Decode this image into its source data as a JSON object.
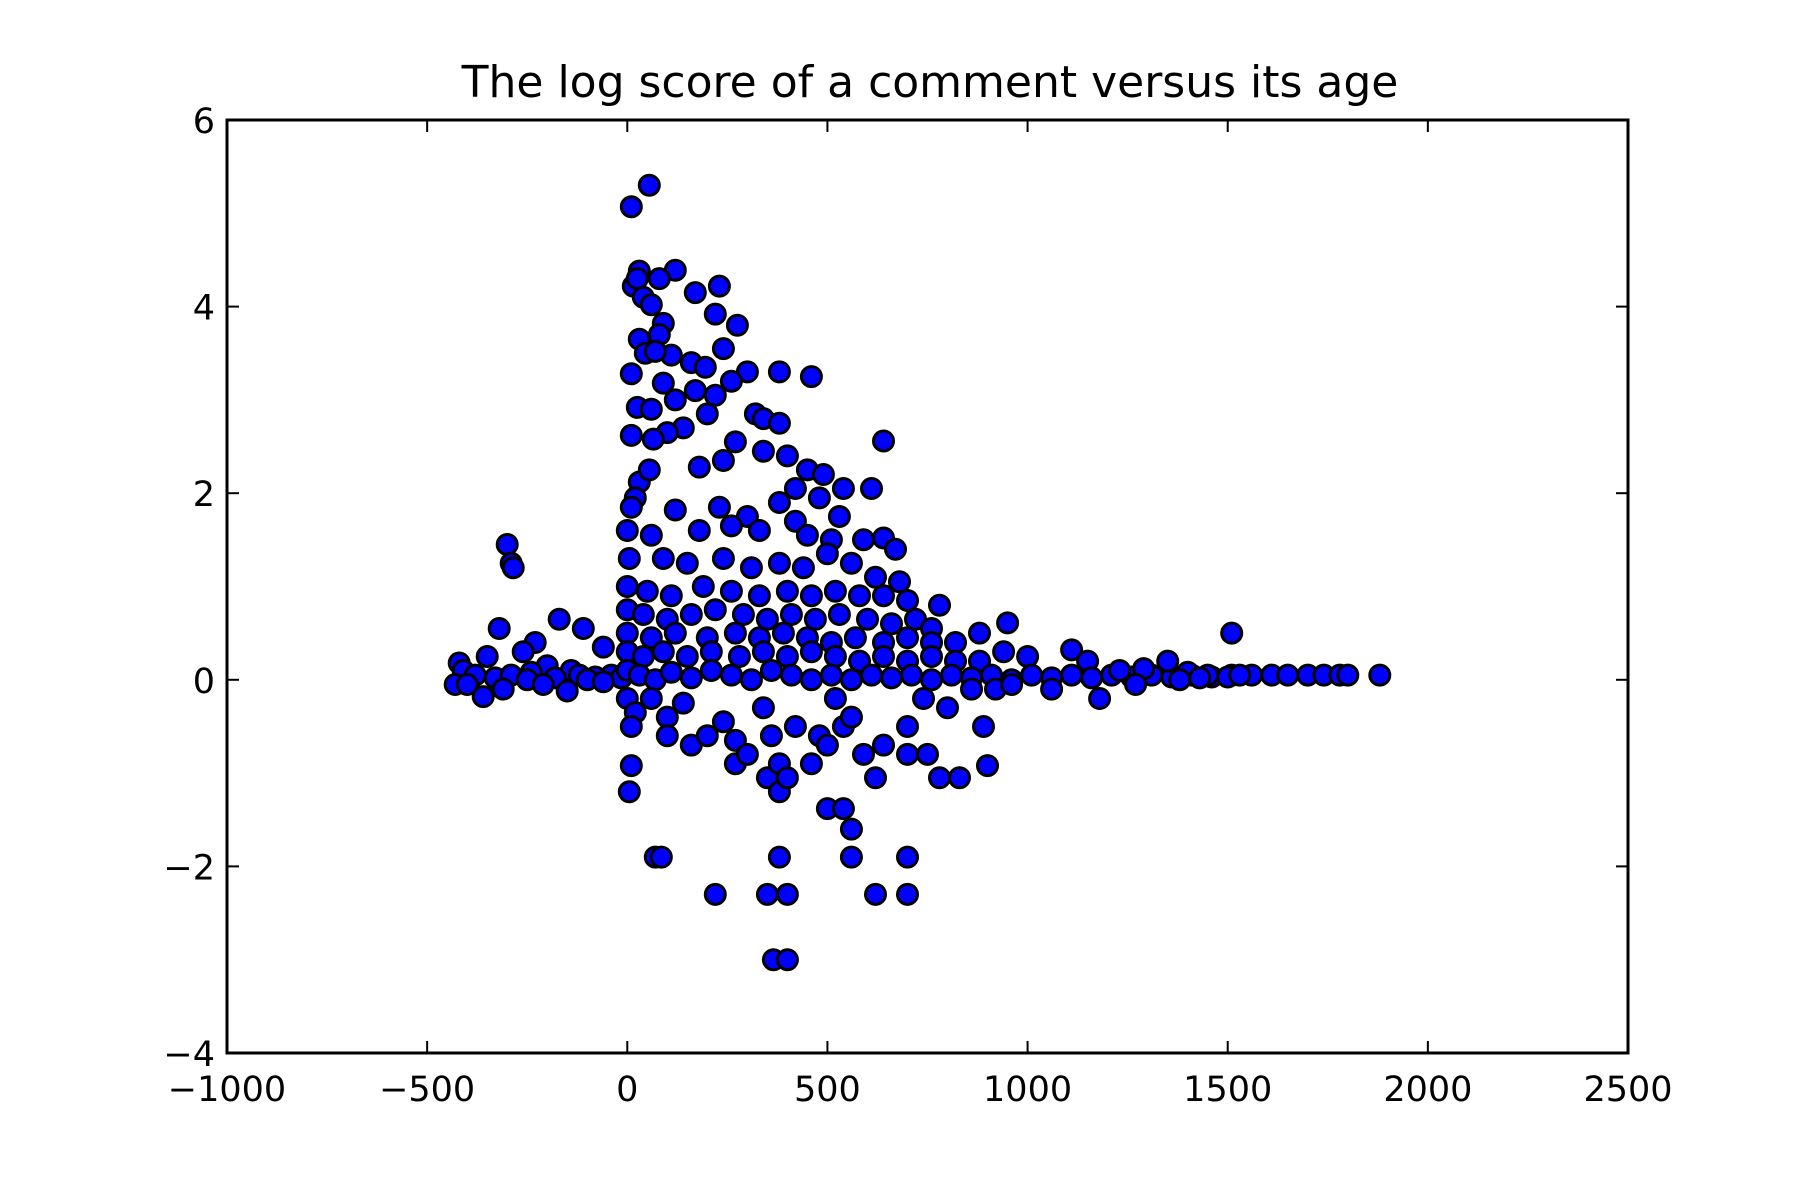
{
  "chart_data": {
    "type": "scatter",
    "title": "The log score of a comment versus its age",
    "xlabel": "",
    "ylabel": "",
    "xlim": [
      -1000,
      2500
    ],
    "ylim": [
      -4,
      6
    ],
    "x_ticks": [
      -1000,
      -500,
      0,
      500,
      1000,
      1500,
      2000,
      2500
    ],
    "y_ticks": [
      -4,
      -2,
      0,
      2,
      4,
      6
    ],
    "x_tick_labels": [
      "−1000",
      "−500",
      "0",
      "500",
      "1000",
      "1500",
      "2000",
      "2500"
    ],
    "y_tick_labels": [
      "−4",
      "−2",
      "0",
      "2",
      "4",
      "6"
    ],
    "grid": false,
    "legend": "none",
    "marker": {
      "shape": "circle",
      "fill": "#0000ff",
      "edge": "#000000"
    },
    "series": [
      {
        "points": [
          [
            55,
            5.3
          ],
          [
            10,
            5.07
          ],
          [
            120,
            4.39
          ],
          [
            30,
            4.38
          ],
          [
            80,
            4.3
          ],
          [
            230,
            4.22
          ],
          [
            15,
            4.22
          ],
          [
            25,
            4.3
          ],
          [
            170,
            4.15
          ],
          [
            40,
            4.1
          ],
          [
            60,
            4.02
          ],
          [
            220,
            3.92
          ],
          [
            90,
            3.82
          ],
          [
            275,
            3.8
          ],
          [
            240,
            3.55
          ],
          [
            30,
            3.65
          ],
          [
            80,
            3.7
          ],
          [
            45,
            3.5
          ],
          [
            110,
            3.48
          ],
          [
            70,
            3.52
          ],
          [
            160,
            3.4
          ],
          [
            195,
            3.35
          ],
          [
            380,
            3.3
          ],
          [
            460,
            3.25
          ],
          [
            10,
            3.28
          ],
          [
            90,
            3.18
          ],
          [
            300,
            3.3
          ],
          [
            260,
            3.2
          ],
          [
            220,
            3.05
          ],
          [
            170,
            3.1
          ],
          [
            120,
            3.0
          ],
          [
            25,
            2.92
          ],
          [
            60,
            2.9
          ],
          [
            200,
            2.85
          ],
          [
            320,
            2.85
          ],
          [
            340,
            2.8
          ],
          [
            380,
            2.75
          ],
          [
            140,
            2.7
          ],
          [
            100,
            2.65
          ],
          [
            65,
            2.58
          ],
          [
            10,
            2.62
          ],
          [
            270,
            2.55
          ],
          [
            640,
            2.56
          ],
          [
            400,
            2.4
          ],
          [
            340,
            2.45
          ],
          [
            450,
            2.25
          ],
          [
            490,
            2.2
          ],
          [
            180,
            2.28
          ],
          [
            30,
            2.12
          ],
          [
            55,
            2.25
          ],
          [
            240,
            2.35
          ],
          [
            420,
            2.05
          ],
          [
            540,
            2.05
          ],
          [
            610,
            2.05
          ],
          [
            20,
            1.95
          ],
          [
            10,
            1.85
          ],
          [
            120,
            1.82
          ],
          [
            230,
            1.85
          ],
          [
            300,
            1.75
          ],
          [
            380,
            1.9
          ],
          [
            480,
            1.95
          ],
          [
            530,
            1.75
          ],
          [
            0,
            1.6
          ],
          [
            60,
            1.55
          ],
          [
            180,
            1.6
          ],
          [
            260,
            1.65
          ],
          [
            330,
            1.6
          ],
          [
            420,
            1.7
          ],
          [
            450,
            1.55
          ],
          [
            510,
            1.5
          ],
          [
            590,
            1.5
          ],
          [
            640,
            1.52
          ],
          [
            670,
            1.4
          ],
          [
            5,
            1.3
          ],
          [
            90,
            1.3
          ],
          [
            150,
            1.25
          ],
          [
            240,
            1.3
          ],
          [
            310,
            1.2
          ],
          [
            380,
            1.25
          ],
          [
            440,
            1.2
          ],
          [
            500,
            1.35
          ],
          [
            560,
            1.25
          ],
          [
            620,
            1.1
          ],
          [
            680,
            1.05
          ],
          [
            0,
            1.0
          ],
          [
            50,
            0.95
          ],
          [
            110,
            0.9
          ],
          [
            190,
            1.0
          ],
          [
            260,
            0.95
          ],
          [
            330,
            0.9
          ],
          [
            400,
            0.95
          ],
          [
            460,
            0.9
          ],
          [
            520,
            0.95
          ],
          [
            580,
            0.9
          ],
          [
            640,
            0.9
          ],
          [
            700,
            0.85
          ],
          [
            780,
            0.8
          ],
          [
            0,
            0.75
          ],
          [
            40,
            0.7
          ],
          [
            100,
            0.65
          ],
          [
            160,
            0.7
          ],
          [
            220,
            0.75
          ],
          [
            290,
            0.7
          ],
          [
            350,
            0.65
          ],
          [
            410,
            0.7
          ],
          [
            470,
            0.65
          ],
          [
            530,
            0.7
          ],
          [
            600,
            0.65
          ],
          [
            660,
            0.6
          ],
          [
            720,
            0.65
          ],
          [
            760,
            0.55
          ],
          [
            950,
            0.61
          ],
          [
            1510,
            0.5
          ],
          [
            0,
            0.5
          ],
          [
            60,
            0.45
          ],
          [
            120,
            0.5
          ],
          [
            200,
            0.45
          ],
          [
            270,
            0.5
          ],
          [
            330,
            0.45
          ],
          [
            390,
            0.5
          ],
          [
            450,
            0.45
          ],
          [
            510,
            0.4
          ],
          [
            570,
            0.45
          ],
          [
            640,
            0.4
          ],
          [
            700,
            0.45
          ],
          [
            760,
            0.4
          ],
          [
            820,
            0.4
          ],
          [
            880,
            0.5
          ],
          [
            0,
            0.3
          ],
          [
            40,
            0.25
          ],
          [
            90,
            0.3
          ],
          [
            150,
            0.25
          ],
          [
            210,
            0.3
          ],
          [
            280,
            0.25
          ],
          [
            340,
            0.3
          ],
          [
            400,
            0.25
          ],
          [
            460,
            0.3
          ],
          [
            520,
            0.25
          ],
          [
            580,
            0.2
          ],
          [
            640,
            0.25
          ],
          [
            700,
            0.2
          ],
          [
            760,
            0.25
          ],
          [
            820,
            0.2
          ],
          [
            880,
            0.2
          ],
          [
            940,
            0.3
          ],
          [
            1000,
            0.25
          ],
          [
            1110,
            0.32
          ],
          [
            1150,
            0.2
          ],
          [
            -300,
            1.45
          ],
          [
            -290,
            1.25
          ],
          [
            -285,
            1.2
          ],
          [
            -320,
            0.55
          ],
          [
            -230,
            0.4
          ],
          [
            -170,
            0.65
          ],
          [
            -110,
            0.55
          ],
          [
            -60,
            0.35
          ],
          [
            -350,
            0.25
          ],
          [
            -260,
            0.3
          ],
          [
            -200,
            0.15
          ],
          [
            -140,
            0.1
          ],
          [
            -420,
            0.18
          ],
          [
            -410,
            0.1
          ],
          [
            -380,
            0.05
          ],
          [
            -330,
            0.02
          ],
          [
            -290,
            0.05
          ],
          [
            -240,
            0.08
          ],
          [
            -180,
            0.02
          ],
          [
            -120,
            0.05
          ],
          [
            -80,
            0.03
          ],
          [
            -40,
            0.05
          ],
          [
            -15,
            0.02
          ],
          [
            -430,
            -0.05
          ],
          [
            -400,
            -0.05
          ],
          [
            -360,
            -0.18
          ],
          [
            -310,
            -0.1
          ],
          [
            -250,
            0.0
          ],
          [
            -210,
            -0.05
          ],
          [
            -150,
            -0.12
          ],
          [
            -100,
            0.0
          ],
          [
            -60,
            -0.02
          ],
          [
            0,
            0.1
          ],
          [
            30,
            0.05
          ],
          [
            70,
            0.0
          ],
          [
            110,
            0.08
          ],
          [
            160,
            0.02
          ],
          [
            210,
            0.1
          ],
          [
            260,
            0.05
          ],
          [
            310,
            0.0
          ],
          [
            360,
            0.1
          ],
          [
            410,
            0.05
          ],
          [
            460,
            0.0
          ],
          [
            510,
            0.05
          ],
          [
            560,
            0.0
          ],
          [
            610,
            0.05
          ],
          [
            660,
            0.02
          ],
          [
            710,
            0.05
          ],
          [
            760,
            0.0
          ],
          [
            810,
            0.05
          ],
          [
            860,
            0.02
          ],
          [
            910,
            0.05
          ],
          [
            960,
            0.0
          ],
          [
            1010,
            0.05
          ],
          [
            1060,
            0.02
          ],
          [
            1110,
            0.05
          ],
          [
            1160,
            0.02
          ],
          [
            1210,
            0.05
          ],
          [
            1260,
            0.03
          ],
          [
            1310,
            0.05
          ],
          [
            1360,
            0.03
          ],
          [
            1410,
            0.05
          ],
          [
            1460,
            0.03
          ],
          [
            1510,
            0.05
          ],
          [
            1560,
            0.05
          ],
          [
            1610,
            0.05
          ],
          [
            1650,
            0.05
          ],
          [
            1700,
            0.05
          ],
          [
            1740,
            0.05
          ],
          [
            1780,
            0.05
          ],
          [
            1800,
            0.05
          ],
          [
            1880,
            0.05
          ],
          [
            1350,
            0.2
          ],
          [
            1230,
            0.1
          ],
          [
            1290,
            0.12
          ],
          [
            1400,
            0.08
          ],
          [
            1450,
            0.05
          ],
          [
            1060,
            -0.1
          ],
          [
            1180,
            -0.2
          ],
          [
            1270,
            -0.05
          ],
          [
            1380,
            0.0
          ],
          [
            1430,
            0.02
          ],
          [
            1500,
            0.03
          ],
          [
            1530,
            0.05
          ],
          [
            0,
            -0.2
          ],
          [
            20,
            -0.35
          ],
          [
            10,
            -0.5
          ],
          [
            60,
            -0.2
          ],
          [
            100,
            -0.4
          ],
          [
            100,
            -0.6
          ],
          [
            140,
            -0.25
          ],
          [
            160,
            -0.7
          ],
          [
            200,
            -0.6
          ],
          [
            240,
            -0.45
          ],
          [
            270,
            -0.65
          ],
          [
            270,
            -0.9
          ],
          [
            300,
            -0.8
          ],
          [
            340,
            -0.3
          ],
          [
            360,
            -0.6
          ],
          [
            350,
            -1.05
          ],
          [
            380,
            -0.9
          ],
          [
            380,
            -1.2
          ],
          [
            400,
            -1.05
          ],
          [
            420,
            -0.5
          ],
          [
            460,
            -0.9
          ],
          [
            480,
            -0.6
          ],
          [
            500,
            -0.7
          ],
          [
            520,
            -0.2
          ],
          [
            540,
            -0.5
          ],
          [
            560,
            -0.4
          ],
          [
            590,
            -0.8
          ],
          [
            620,
            -1.05
          ],
          [
            640,
            -0.7
          ],
          [
            700,
            -0.5
          ],
          [
            700,
            -0.8
          ],
          [
            750,
            -0.8
          ],
          [
            780,
            -1.05
          ],
          [
            830,
            -1.05
          ],
          [
            890,
            -0.5
          ],
          [
            900,
            -0.92
          ],
          [
            740,
            -0.2
          ],
          [
            800,
            -0.3
          ],
          [
            860,
            -0.1
          ],
          [
            920,
            -0.1
          ],
          [
            960,
            -0.05
          ],
          [
            10,
            -0.92
          ],
          [
            5,
            -1.2
          ],
          [
            500,
            -1.38
          ],
          [
            540,
            -1.38
          ],
          [
            560,
            -1.6
          ],
          [
            70,
            -1.9
          ],
          [
            85,
            -1.9
          ],
          [
            380,
            -1.9
          ],
          [
            560,
            -1.9
          ],
          [
            700,
            -1.9
          ],
          [
            220,
            -2.3
          ],
          [
            350,
            -2.3
          ],
          [
            400,
            -2.3
          ],
          [
            620,
            -2.3
          ],
          [
            700,
            -2.3
          ],
          [
            365,
            -3.0
          ],
          [
            400,
            -3.0
          ]
        ]
      }
    ]
  }
}
